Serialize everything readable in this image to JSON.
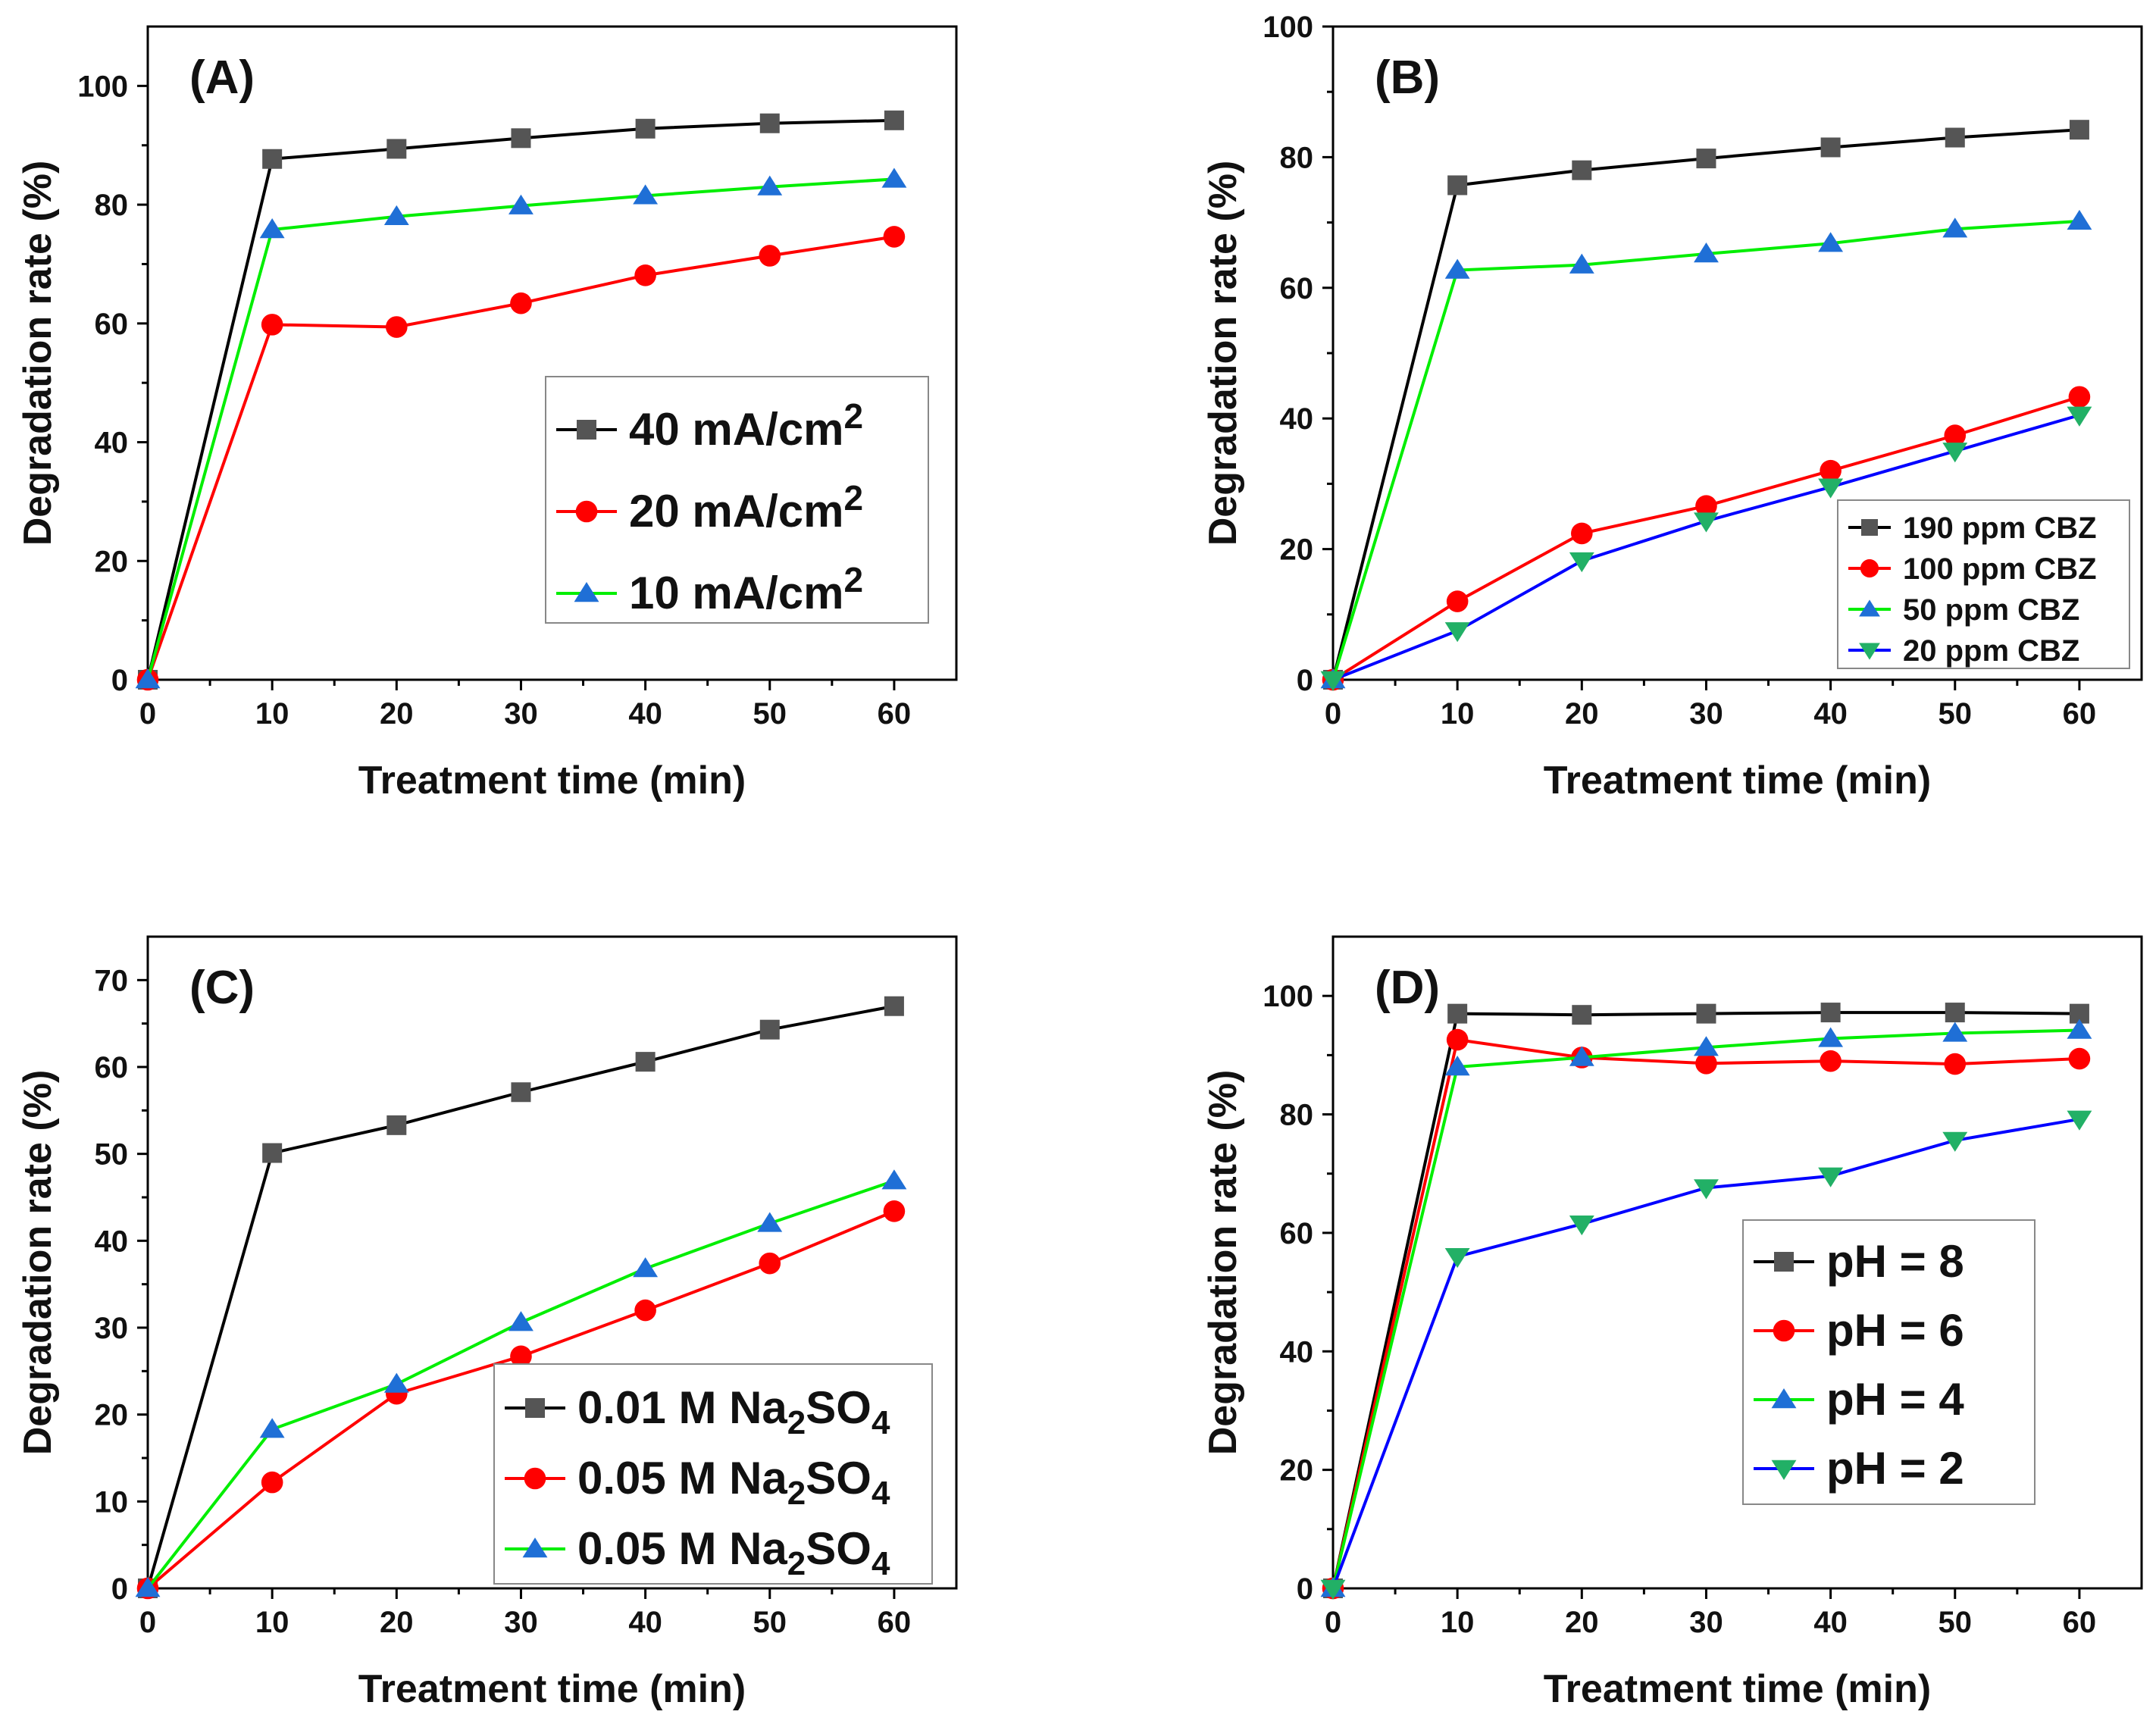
{
  "chart_data": [
    {
      "type": "line",
      "panel": "(A)",
      "xlabel": "Treatment time (min)",
      "ylabel": "Degradation rate (%)",
      "xlim": [
        0,
        65
      ],
      "ylim": [
        0,
        110
      ],
      "xticks": [
        0,
        10,
        20,
        30,
        40,
        50,
        60
      ],
      "yticks": [
        0,
        20,
        40,
        60,
        80,
        100
      ],
      "legend_position": "center-right",
      "legend_size": "large",
      "x": [
        0,
        10,
        20,
        30,
        40,
        50,
        60
      ],
      "series": [
        {
          "name": "40 mA/cm",
          "sup": "2",
          "color": "#000000",
          "marker": "square",
          "values": [
            0,
            87.7,
            89.4,
            91.2,
            92.8,
            93.7,
            94.2
          ]
        },
        {
          "name": "20 mA/cm",
          "sup": "2",
          "color": "#ff0000",
          "marker": "circle",
          "values": [
            0,
            59.8,
            59.4,
            63.4,
            68.1,
            71.4,
            74.6
          ]
        },
        {
          "name": "10 mA/cm",
          "sup": "2",
          "color": "#00ee00",
          "marker": "triangle-up",
          "values": [
            0,
            75.8,
            78.0,
            79.8,
            81.5,
            83.0,
            84.3
          ]
        }
      ]
    },
    {
      "type": "line",
      "panel": "(B)",
      "xlabel": "Treatment time (min)",
      "ylabel": "Degradation rate (%)",
      "xlim": [
        0,
        65
      ],
      "ylim": [
        0,
        100
      ],
      "xticks": [
        0,
        10,
        20,
        30,
        40,
        50,
        60
      ],
      "yticks": [
        0,
        20,
        40,
        60,
        80,
        100
      ],
      "legend_position": "bottom-right",
      "legend_size": "small",
      "x": [
        0,
        10,
        20,
        30,
        40,
        50,
        60
      ],
      "series": [
        {
          "name": "190 ppm CBZ",
          "color": "#000000",
          "marker": "square",
          "values": [
            0,
            75.7,
            78.0,
            79.8,
            81.5,
            83.0,
            84.2
          ]
        },
        {
          "name": "100 ppm CBZ",
          "color": "#ff0000",
          "marker": "circle",
          "values": [
            0,
            12.0,
            22.4,
            26.6,
            32.0,
            37.4,
            43.3
          ]
        },
        {
          "name": "50 ppm CBZ",
          "color": "#00ee00",
          "marker": "triangle-up",
          "values": [
            0,
            62.7,
            63.5,
            65.2,
            66.8,
            69.0,
            70.2
          ]
        },
        {
          "name": "20 ppm CBZ",
          "color": "#0000ff",
          "marker": "triangle-down",
          "values": [
            0,
            7.5,
            18.2,
            24.3,
            29.5,
            35.0,
            40.5
          ]
        }
      ]
    },
    {
      "type": "line",
      "panel": "(C)",
      "xlabel": "Treatment time (min)",
      "ylabel": "Degradation rate (%)",
      "xlim": [
        0,
        65
      ],
      "ylim": [
        0,
        75
      ],
      "xticks": [
        0,
        10,
        20,
        30,
        40,
        50,
        60
      ],
      "yticks": [
        0,
        10,
        20,
        30,
        40,
        50,
        60,
        70
      ],
      "legend_position": "bottom-right",
      "legend_size": "large",
      "x": [
        0,
        10,
        20,
        30,
        40,
        50,
        60
      ],
      "series": [
        {
          "name": "0.01 M Na",
          "sub": "2",
          "name_end": "SO",
          "sub2": "4",
          "color": "#000000",
          "marker": "square",
          "values": [
            0,
            50.1,
            53.3,
            57.1,
            60.6,
            64.3,
            67.0
          ]
        },
        {
          "name": "0.05 M Na",
          "sub": "2",
          "name_end": "SO",
          "sub2": "4",
          "color": "#ff0000",
          "marker": "circle",
          "values": [
            0,
            12.2,
            22.4,
            26.7,
            32.0,
            37.4,
            43.4
          ]
        },
        {
          "name": "0.05 M Na",
          "sub": "2",
          "name_end": "SO",
          "sub2": "4",
          "color": "#00ee00",
          "marker": "triangle-up",
          "values": [
            0,
            18.3,
            23.5,
            30.6,
            36.8,
            42.0,
            46.9
          ]
        }
      ]
    },
    {
      "type": "line",
      "panel": "(D)",
      "xlabel": "Treatment time (min)",
      "ylabel": "Degradation rate (%)",
      "xlim": [
        0,
        65
      ],
      "ylim": [
        0,
        110
      ],
      "xticks": [
        0,
        10,
        20,
        30,
        40,
        50,
        60
      ],
      "yticks": [
        0,
        20,
        40,
        60,
        80,
        100
      ],
      "legend_position": "center-right",
      "legend_size": "large",
      "x": [
        0,
        10,
        20,
        30,
        40,
        50,
        60
      ],
      "series": [
        {
          "name": "pH = 8",
          "color": "#000000",
          "marker": "square",
          "values": [
            0,
            97.0,
            96.8,
            97.0,
            97.2,
            97.2,
            97.0
          ]
        },
        {
          "name": "pH = 6",
          "color": "#ff0000",
          "marker": "circle",
          "values": [
            0,
            92.6,
            89.6,
            88.6,
            89.0,
            88.5,
            89.4
          ]
        },
        {
          "name": "pH = 4",
          "color": "#00ee00",
          "marker": "triangle-up",
          "values": [
            0,
            88.0,
            89.6,
            91.3,
            92.8,
            93.7,
            94.2
          ]
        },
        {
          "name": "pH = 2",
          "color": "#0000ff",
          "marker": "triangle-down",
          "values": [
            0,
            56.0,
            61.5,
            67.6,
            69.6,
            75.6,
            79.2
          ]
        }
      ]
    }
  ]
}
